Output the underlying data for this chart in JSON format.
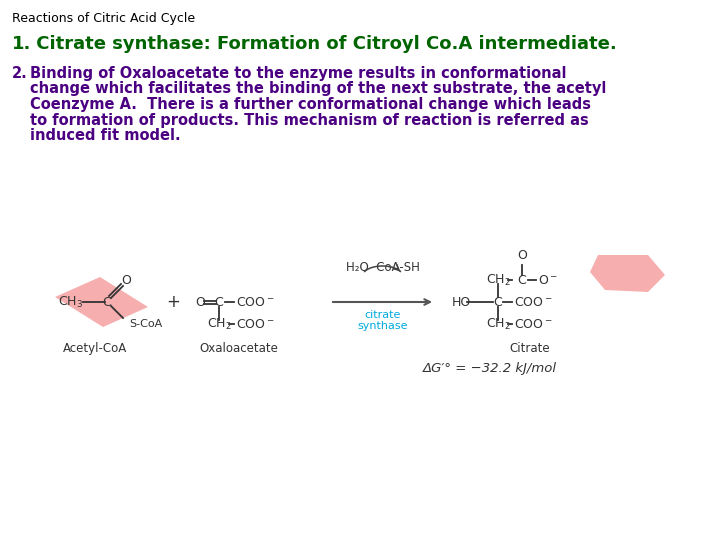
{
  "background_color": "#ffffff",
  "header_text": "Reactions of Citric Acid Cycle",
  "header_color": "#000000",
  "header_fontsize": 9,
  "item1_number": "1.",
  "item1_text": " Citrate synthase: Formation of Citroyl Co.A intermediate.",
  "item1_color": "#006400",
  "item1_fontsize": 13,
  "item2_number": "2.",
  "item2_line1": "Binding of Oxaloacetate to the enzyme results in conformational",
  "item2_line2": "change which facilitates the binding of the next substrate, the acetyl",
  "item2_line3": "Coenzyme A.  There is a further conformational change which leads",
  "item2_line4": "to formation of products. This mechanism of reaction is referred as",
  "item2_line5": "induced fit model.",
  "item2_color": "#4B0082",
  "item2_fontsize": 10.5,
  "pink_color": "#F5A0A0",
  "arrow_color": "#555555",
  "label_color": "#333333",
  "enzyme_color": "#00AADD",
  "delta_g_text": "ΔG′° = −32.2 kJ/mol",
  "delta_g_color": "#333333",
  "acetyl_label": "Acetyl-CoA",
  "oxalo_label": "Oxaloacetate",
  "citrate_label": "Citrate",
  "h2o_label": "H₂O  CoA-SH",
  "enzyme_label1": "citrate",
  "enzyme_label2": "synthase"
}
